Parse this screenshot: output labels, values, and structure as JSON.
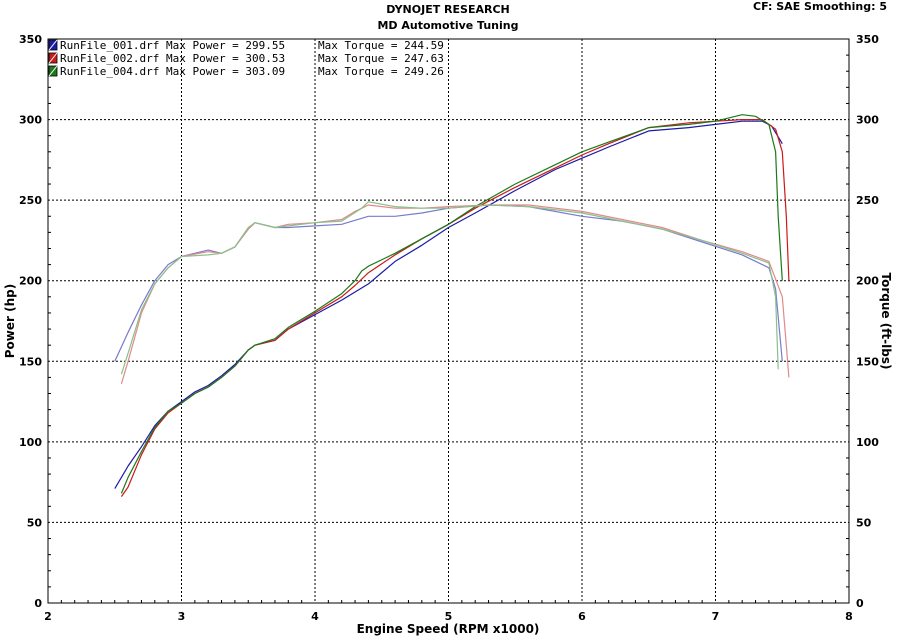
{
  "header": {
    "title": "DYNOJET RESEARCH",
    "subtitle": "MD Automotive Tuning",
    "settings": "CF: SAE  Smoothing: 5"
  },
  "chart_data": {
    "type": "line",
    "xlabel": "Engine Speed (RPM x1000)",
    "ylabel_left": "Power (hp)",
    "ylabel_right": "Torque (ft-lbs)",
    "xlim": [
      2,
      8
    ],
    "ylim": [
      0,
      350
    ],
    "x_ticks": [
      "2",
      "3",
      "4",
      "5",
      "6",
      "7",
      "8"
    ],
    "y_ticks": [
      "0",
      "50",
      "100",
      "150",
      "200",
      "250",
      "300",
      "350"
    ],
    "grid": true,
    "legend_position": "top-left",
    "colors": {
      "run1": "#1a1aa8",
      "run2": "#cc1a1a",
      "run4": "#1a7a1a"
    },
    "legend": [
      {
        "file": "RunFile_001.drf",
        "max_power_text": "Max Power = 299.55",
        "max_torque_text": "Max Torque = 244.59",
        "color": "#1a1aa8"
      },
      {
        "file": "RunFile_002.drf",
        "max_power_text": "Max Power = 300.53",
        "max_torque_text": "Max Torque = 247.63",
        "color": "#cc1a1a"
      },
      {
        "file": "RunFile_004.drf",
        "max_power_text": "Max Power = 303.09",
        "max_torque_text": "Max Torque = 249.26",
        "color": "#1a7a1a"
      }
    ],
    "series": [
      {
        "name": "RunFile_001.drf",
        "quantity": "power",
        "color": "#1a1aa8",
        "x": [
          2.5,
          2.6,
          2.7,
          2.8,
          2.9,
          3.0,
          3.1,
          3.2,
          3.3,
          3.4,
          3.5,
          3.55,
          3.7,
          3.8,
          4.0,
          4.2,
          4.4,
          4.6,
          4.8,
          5.0,
          5.2,
          5.5,
          5.8,
          6.0,
          6.2,
          6.5,
          6.8,
          7.0,
          7.2,
          7.35,
          7.42,
          7.5
        ],
        "y": [
          71,
          85,
          97,
          110,
          119,
          125,
          131,
          135,
          141,
          148,
          157,
          160,
          163,
          170,
          179,
          188,
          198,
          212,
          222,
          233,
          242,
          256,
          269,
          276,
          283,
          293,
          295,
          297,
          299,
          299,
          296,
          285
        ]
      },
      {
        "name": "RunFile_002.drf",
        "quantity": "power",
        "color": "#cc1a1a",
        "x": [
          2.55,
          2.6,
          2.7,
          2.8,
          2.9,
          3.0,
          3.1,
          3.2,
          3.3,
          3.4,
          3.5,
          3.55,
          3.7,
          3.8,
          4.0,
          4.2,
          4.3,
          4.4,
          4.6,
          4.8,
          5.0,
          5.2,
          5.5,
          5.8,
          6.0,
          6.2,
          6.5,
          6.8,
          7.0,
          7.2,
          7.35,
          7.45,
          7.5,
          7.53,
          7.55
        ],
        "y": [
          66,
          72,
          92,
          108,
          118,
          124,
          130,
          134,
          140,
          147,
          157,
          160,
          163,
          170,
          180,
          190,
          197,
          205,
          216,
          226,
          235,
          245,
          258,
          270,
          278,
          285,
          295,
          298,
          299,
          300,
          300,
          294,
          280,
          240,
          200
        ]
      },
      {
        "name": "RunFile_004.drf",
        "quantity": "power",
        "color": "#1a7a1a",
        "x": [
          2.55,
          2.6,
          2.7,
          2.8,
          2.9,
          3.0,
          3.1,
          3.2,
          3.3,
          3.4,
          3.5,
          3.55,
          3.7,
          3.8,
          4.0,
          4.2,
          4.3,
          4.35,
          4.4,
          4.6,
          4.8,
          5.0,
          5.2,
          5.5,
          5.8,
          6.0,
          6.2,
          6.5,
          6.8,
          7.0,
          7.2,
          7.3,
          7.4,
          7.45,
          7.47,
          7.5
        ],
        "y": [
          68,
          78,
          94,
          109,
          119,
          124,
          130,
          134,
          140,
          147,
          157,
          160,
          164,
          171,
          181,
          192,
          200,
          206,
          209,
          217,
          226,
          235,
          246,
          260,
          272,
          280,
          286,
          295,
          297,
          299,
          303,
          302,
          297,
          280,
          240,
          200
        ]
      },
      {
        "name": "RunFile_001.drf",
        "quantity": "torque",
        "color": "#7a7ad0",
        "x": [
          2.5,
          2.6,
          2.7,
          2.8,
          2.9,
          3.0,
          3.2,
          3.3,
          3.4,
          3.5,
          3.55,
          3.7,
          3.8,
          4.0,
          4.2,
          4.4,
          4.6,
          4.8,
          5.0,
          5.3,
          5.6,
          6.0,
          6.3,
          6.6,
          6.9,
          7.2,
          7.4,
          7.45,
          7.5
        ],
        "y": [
          150,
          168,
          185,
          200,
          210,
          215,
          219,
          217,
          221,
          232,
          236,
          233,
          233,
          234,
          235,
          240,
          240,
          242,
          245,
          247,
          246,
          240,
          237,
          232,
          224,
          216,
          208,
          195,
          150
        ]
      },
      {
        "name": "RunFile_002.drf",
        "quantity": "torque",
        "color": "#e08a8a",
        "x": [
          2.55,
          2.6,
          2.7,
          2.8,
          2.9,
          3.0,
          3.2,
          3.3,
          3.4,
          3.5,
          3.55,
          3.7,
          3.8,
          4.0,
          4.2,
          4.3,
          4.4,
          4.6,
          4.8,
          5.0,
          5.3,
          5.6,
          6.0,
          6.3,
          6.6,
          6.9,
          7.2,
          7.4,
          7.5,
          7.53,
          7.55
        ],
        "y": [
          136,
          150,
          180,
          198,
          208,
          215,
          218,
          217,
          221,
          232,
          236,
          233,
          235,
          236,
          238,
          243,
          247,
          245,
          245,
          246,
          247,
          247,
          243,
          238,
          233,
          225,
          218,
          212,
          190,
          160,
          140
        ]
      },
      {
        "name": "RunFile_004.drf",
        "quantity": "torque",
        "color": "#8ac08a",
        "x": [
          2.55,
          2.6,
          2.7,
          2.8,
          2.9,
          3.0,
          3.2,
          3.3,
          3.4,
          3.5,
          3.55,
          3.7,
          3.8,
          4.0,
          4.2,
          4.35,
          4.4,
          4.6,
          4.8,
          5.0,
          5.3,
          5.6,
          6.0,
          6.3,
          6.6,
          6.9,
          7.2,
          7.4,
          7.45,
          7.47
        ],
        "y": [
          142,
          155,
          182,
          198,
          208,
          215,
          216,
          217,
          221,
          233,
          236,
          233,
          234,
          236,
          237,
          245,
          249,
          246,
          245,
          245,
          247,
          246,
          242,
          237,
          232,
          225,
          217,
          211,
          190,
          145
        ]
      }
    ]
  }
}
